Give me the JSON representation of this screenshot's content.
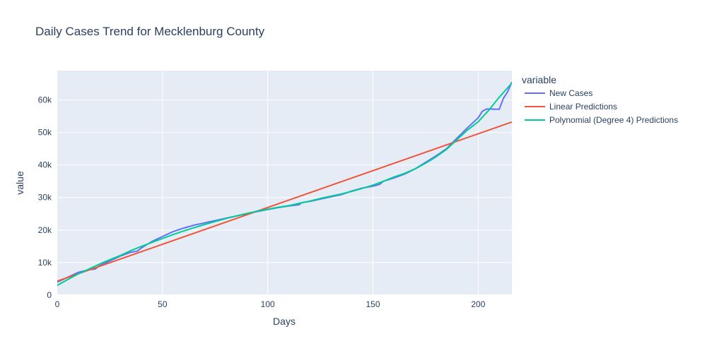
{
  "chart_data": {
    "type": "line",
    "title": "Daily Cases Trend for Mecklenburg County",
    "xlabel": "Days",
    "ylabel": "value",
    "xlim": [
      0,
      216
    ],
    "ylim": [
      0,
      69000
    ],
    "x_ticks": [
      0,
      50,
      100,
      150,
      200
    ],
    "y_ticks": [
      {
        "value": 0,
        "label": "0"
      },
      {
        "value": 10000,
        "label": "10k"
      },
      {
        "value": 20000,
        "label": "20k"
      },
      {
        "value": 30000,
        "label": "30k"
      },
      {
        "value": 40000,
        "label": "40k"
      },
      {
        "value": 50000,
        "label": "50k"
      },
      {
        "value": 60000,
        "label": "60k"
      }
    ],
    "grid": true,
    "legend_title": "variable",
    "legend_position": "right",
    "series": [
      {
        "name": "New Cases",
        "color": "#636efa",
        "x": [
          0,
          5,
          10,
          15,
          18,
          20,
          25,
          30,
          35,
          38,
          40,
          45,
          50,
          55,
          60,
          65,
          70,
          72,
          75,
          80,
          85,
          90,
          95,
          100,
          105,
          110,
          115,
          116,
          120,
          125,
          130,
          135,
          140,
          145,
          150,
          153,
          155,
          160,
          165,
          170,
          175,
          180,
          185,
          190,
          195,
          200,
          202,
          204,
          206,
          208,
          210,
          212,
          214,
          216
        ],
        "y": [
          4000,
          5500,
          7000,
          7800,
          8000,
          9000,
          10500,
          12000,
          13200,
          13500,
          14500,
          16500,
          18000,
          19500,
          20600,
          21500,
          22200,
          22500,
          22900,
          23600,
          24300,
          25000,
          25700,
          26300,
          26900,
          27400,
          27800,
          28400,
          28800,
          29500,
          30200,
          30900,
          32000,
          32900,
          33500,
          34000,
          35000,
          36000,
          37200,
          38800,
          40800,
          42800,
          45000,
          48300,
          51500,
          54500,
          56500,
          57200,
          57200,
          57100,
          57100,
          60500,
          62500,
          65500
        ]
      },
      {
        "name": "Linear Predictions",
        "color": "#ef553b",
        "x": [
          0,
          216
        ],
        "y": [
          4300,
          53200
        ]
      },
      {
        "name": "Polynomial (Degree 4) Predictions",
        "color": "#00cc96",
        "x": [
          0,
          5,
          10,
          15,
          20,
          25,
          30,
          35,
          40,
          45,
          50,
          55,
          60,
          65,
          70,
          75,
          80,
          85,
          90,
          95,
          100,
          105,
          110,
          115,
          120,
          125,
          130,
          135,
          140,
          145,
          150,
          155,
          160,
          165,
          170,
          175,
          180,
          185,
          190,
          195,
          200,
          205,
          210,
          216
        ],
        "y": [
          3000,
          4800,
          6500,
          8000,
          9500,
          10900,
          12200,
          13700,
          15000,
          16200,
          17400,
          18600,
          19700,
          20700,
          21700,
          22600,
          23500,
          24300,
          25100,
          25800,
          26400,
          27000,
          27500,
          28200,
          28900,
          29700,
          30400,
          31100,
          31900,
          32800,
          33800,
          35000,
          36300,
          37400,
          38800,
          40500,
          42500,
          44800,
          47800,
          50800,
          53300,
          56800,
          60800,
          65200
        ]
      }
    ]
  }
}
